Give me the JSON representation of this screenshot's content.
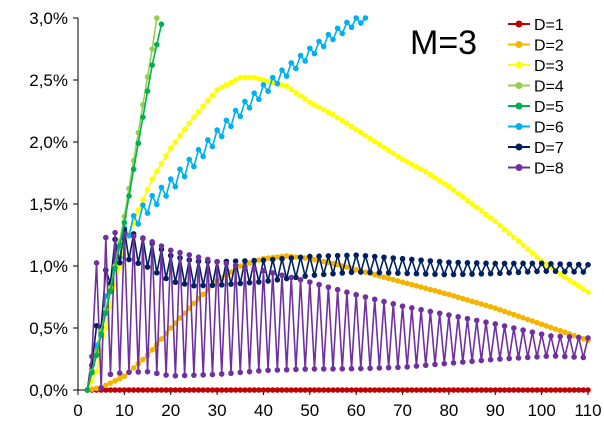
{
  "chart_data": {
    "type": "line",
    "title": "",
    "xlabel": "",
    "ylabel": "",
    "xlim": [
      0,
      110
    ],
    "ylim": [
      0,
      0.03
    ],
    "x_ticks": [
      0,
      10,
      20,
      30,
      40,
      50,
      60,
      70,
      80,
      90,
      100,
      110
    ],
    "y_ticks": [
      0.0,
      0.005,
      0.01,
      0.015,
      0.02,
      0.025,
      0.03
    ],
    "y_tick_labels": [
      "0,0%",
      "0,5%",
      "1,0%",
      "1,5%",
      "2,0%",
      "2,5%",
      "3,0%"
    ],
    "x_tick_labels": [
      "0",
      "10",
      "20",
      "30",
      "40",
      "50",
      "60",
      "70",
      "80",
      "90",
      "100",
      "110"
    ],
    "grid": false,
    "legend_position": "top-right",
    "annotation": "M=3",
    "series": [
      {
        "name": "D=1",
        "color": "#c00000",
        "points": [
          [
            2,
            0
          ],
          [
            110,
            0
          ]
        ],
        "step": 1
      },
      {
        "name": "D=2",
        "color": "#f4b400",
        "points": [
          [
            2,
            0
          ],
          [
            5,
            0.0002
          ],
          [
            10,
            0.0011
          ],
          [
            15,
            0.0028
          ],
          [
            20,
            0.005
          ],
          [
            25,
            0.007
          ],
          [
            30,
            0.0088
          ],
          [
            35,
            0.01
          ],
          [
            40,
            0.0106
          ],
          [
            45,
            0.0108
          ],
          [
            50,
            0.0106
          ],
          [
            55,
            0.0102
          ],
          [
            60,
            0.0097
          ],
          [
            70,
            0.0087
          ],
          [
            80,
            0.0077
          ],
          [
            90,
            0.0066
          ],
          [
            100,
            0.0053
          ],
          [
            110,
            0.004
          ]
        ],
        "step": 1
      },
      {
        "name": "D=3",
        "color": "#ffff00",
        "points": [
          [
            2,
            0
          ],
          [
            4,
            0.0015
          ],
          [
            6,
            0.005
          ],
          [
            8,
            0.0085
          ],
          [
            10,
            0.0115
          ],
          [
            13,
            0.0145
          ],
          [
            16,
            0.017
          ],
          [
            20,
            0.0195
          ],
          [
            25,
            0.022
          ],
          [
            30,
            0.0242
          ],
          [
            35,
            0.0252
          ],
          [
            38,
            0.0252
          ],
          [
            42,
            0.0248
          ],
          [
            45,
            0.0245
          ],
          [
            50,
            0.0232
          ],
          [
            55,
            0.0222
          ],
          [
            60,
            0.021
          ],
          [
            65,
            0.0198
          ],
          [
            70,
            0.0186
          ],
          [
            75,
            0.0176
          ],
          [
            80,
            0.0164
          ],
          [
            85,
            0.015
          ],
          [
            90,
            0.0136
          ],
          [
            95,
            0.012
          ],
          [
            100,
            0.0104
          ],
          [
            105,
            0.0091
          ],
          [
            110,
            0.0079
          ]
        ],
        "step": 1
      },
      {
        "name": "D=4",
        "color": "#92d050",
        "points": [
          [
            2,
            0
          ],
          [
            4,
            0.003
          ],
          [
            6,
            0.0065
          ],
          [
            8,
            0.01
          ],
          [
            10,
            0.014
          ],
          [
            12,
            0.0185
          ],
          [
            14,
            0.023
          ],
          [
            16,
            0.0275
          ],
          [
            17,
            0.03
          ]
        ],
        "step": 1
      },
      {
        "name": "D=5",
        "color": "#00b050",
        "points": [
          [
            2,
            0
          ],
          [
            4,
            0.0028
          ],
          [
            6,
            0.0062
          ],
          [
            8,
            0.0098
          ],
          [
            10,
            0.0135
          ],
          [
            12,
            0.0178
          ],
          [
            14,
            0.022
          ],
          [
            16,
            0.0262
          ],
          [
            18,
            0.0295
          ]
        ],
        "step": 1
      },
      {
        "name": "D=6",
        "color": "#00b0f0",
        "points": [
          [
            2,
            0
          ],
          [
            4,
            0.003
          ],
          [
            6,
            0.007
          ],
          [
            8,
            0.01
          ],
          [
            10,
            0.0125
          ],
          [
            12,
            0.0135
          ],
          [
            15,
            0.0148
          ],
          [
            20,
            0.0165
          ],
          [
            25,
            0.0185
          ],
          [
            30,
            0.0205
          ],
          [
            35,
            0.0225
          ],
          [
            40,
            0.0242
          ],
          [
            45,
            0.0257
          ],
          [
            50,
            0.0272
          ],
          [
            55,
            0.0286
          ],
          [
            60,
            0.0298
          ],
          [
            62,
            0.03
          ]
        ],
        "zigzag": [
          0.0006,
          0.0001
        ],
        "step": 1
      },
      {
        "name": "D=7",
        "color": "#002060",
        "points": [
          [
            2,
            0
          ],
          [
            4,
            0.004
          ],
          [
            6,
            0.0085
          ],
          [
            8,
            0.011
          ],
          [
            10,
            0.0118
          ],
          [
            15,
            0.011
          ],
          [
            20,
            0.0098
          ],
          [
            25,
            0.0094
          ],
          [
            30,
            0.0094
          ],
          [
            40,
            0.0096
          ],
          [
            50,
            0.01
          ],
          [
            60,
            0.0102
          ],
          [
            70,
            0.01
          ],
          [
            80,
            0.0098
          ],
          [
            90,
            0.0098
          ],
          [
            100,
            0.0099
          ],
          [
            110,
            0.0098
          ]
        ],
        "zigzag": [
          0.0012,
          0.0003
        ],
        "step": 1
      },
      {
        "name": "D=8",
        "color": "#7030a0",
        "points": [
          [
            2,
            0
          ],
          [
            3,
            0.0027
          ],
          [
            5,
            0.006
          ],
          [
            7,
            0.007
          ],
          [
            10,
            0.007
          ],
          [
            15,
            0.0068
          ],
          [
            20,
            0.0062
          ],
          [
            30,
            0.0058
          ],
          [
            40,
            0.0056
          ],
          [
            50,
            0.0052
          ],
          [
            60,
            0.0047
          ],
          [
            70,
            0.0043
          ],
          [
            80,
            0.0041
          ],
          [
            90,
            0.0039
          ],
          [
            100,
            0.0036
          ],
          [
            110,
            0.0034
          ]
        ],
        "zigzag": [
          0.006,
          0.0008
        ],
        "step": 1
      }
    ]
  }
}
